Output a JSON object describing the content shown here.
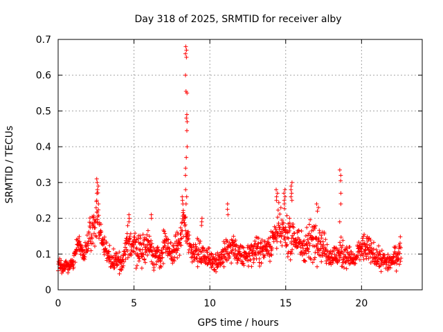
{
  "chart_data": {
    "type": "scatter",
    "title": "Day 318 of 2025, SRMTID for receiver alby",
    "xlabel": "GPS time / hours",
    "ylabel": "SRMTID / TECUs",
    "xlim": [
      0,
      24
    ],
    "ylim": [
      0,
      0.7
    ],
    "xticks": [
      0,
      5,
      10,
      15,
      20
    ],
    "xtick_labels": [
      "0",
      "5",
      "10",
      "15",
      "20"
    ],
    "yticks": [
      0,
      0.1,
      0.2,
      0.3,
      0.4,
      0.5,
      0.6,
      0.7
    ],
    "ytick_labels": [
      "0",
      "0.1",
      "0.2",
      "0.3",
      "0.4",
      "0.5",
      "0.6",
      "0.7"
    ],
    "grid": true,
    "marker": "+",
    "series": [
      {
        "name": "SRMTID",
        "color": "#ff0000",
        "data_range_hours": [
          0,
          22.6
        ],
        "profile": [
          [
            0.0,
            0.07,
            0.012
          ],
          [
            0.5,
            0.065,
            0.012
          ],
          [
            1.0,
            0.075,
            0.014
          ],
          [
            1.3,
            0.14,
            0.02
          ],
          [
            1.7,
            0.09,
            0.015
          ],
          [
            2.1,
            0.15,
            0.04
          ],
          [
            2.3,
            0.17,
            0.04
          ],
          [
            2.6,
            0.22,
            0.05
          ],
          [
            2.9,
            0.14,
            0.03
          ],
          [
            3.3,
            0.09,
            0.02
          ],
          [
            3.8,
            0.085,
            0.02
          ],
          [
            4.2,
            0.075,
            0.015
          ],
          [
            4.6,
            0.13,
            0.03
          ],
          [
            5.0,
            0.13,
            0.04
          ],
          [
            5.5,
            0.11,
            0.03
          ],
          [
            6.0,
            0.13,
            0.03
          ],
          [
            6.3,
            0.1,
            0.03
          ],
          [
            6.7,
            0.08,
            0.025
          ],
          [
            7.0,
            0.13,
            0.03
          ],
          [
            7.5,
            0.1,
            0.02
          ],
          [
            8.0,
            0.13,
            0.03
          ],
          [
            8.3,
            0.2,
            0.04
          ],
          [
            8.5,
            0.15,
            0.03
          ],
          [
            8.8,
            0.11,
            0.02
          ],
          [
            9.3,
            0.1,
            0.025
          ],
          [
            9.8,
            0.09,
            0.02
          ],
          [
            10.5,
            0.08,
            0.02
          ],
          [
            11.0,
            0.1,
            0.025
          ],
          [
            11.5,
            0.12,
            0.03
          ],
          [
            12.0,
            0.09,
            0.02
          ],
          [
            12.5,
            0.1,
            0.02
          ],
          [
            13.0,
            0.11,
            0.025
          ],
          [
            13.5,
            0.11,
            0.025
          ],
          [
            14.0,
            0.13,
            0.03
          ],
          [
            14.5,
            0.17,
            0.04
          ],
          [
            15.0,
            0.15,
            0.04
          ],
          [
            15.5,
            0.15,
            0.04
          ],
          [
            16.0,
            0.12,
            0.03
          ],
          [
            16.5,
            0.13,
            0.04
          ],
          [
            17.0,
            0.15,
            0.04
          ],
          [
            17.5,
            0.12,
            0.03
          ],
          [
            18.0,
            0.09,
            0.02
          ],
          [
            18.5,
            0.1,
            0.03
          ],
          [
            19.0,
            0.1,
            0.025
          ],
          [
            19.5,
            0.08,
            0.015
          ],
          [
            20.0,
            0.12,
            0.03
          ],
          [
            20.5,
            0.11,
            0.025
          ],
          [
            21.0,
            0.09,
            0.02
          ],
          [
            21.5,
            0.08,
            0.02
          ],
          [
            22.0,
            0.08,
            0.02
          ],
          [
            22.6,
            0.11,
            0.025
          ]
        ],
        "spikes": [
          {
            "x": 2.6,
            "values": [
              0.31,
              0.3,
              0.29,
              0.28,
              0.27,
              0.25,
              0.24
            ]
          },
          {
            "x": 4.7,
            "values": [
              0.21,
              0.2,
              0.19
            ]
          },
          {
            "x": 6.1,
            "values": [
              0.21,
              0.2
            ]
          },
          {
            "x": 8.2,
            "values": [
              0.26,
              0.25,
              0.24
            ]
          },
          {
            "x": 8.45,
            "values": [
              0.68,
              0.67,
              0.66,
              0.65,
              0.6,
              0.555,
              0.55,
              0.49,
              0.48,
              0.47,
              0.445,
              0.4,
              0.37,
              0.34,
              0.32,
              0.28,
              0.26,
              0.24
            ]
          },
          {
            "x": 9.5,
            "values": [
              0.2,
              0.19,
              0.18
            ]
          },
          {
            "x": 11.2,
            "values": [
              0.24,
              0.225,
              0.21
            ]
          },
          {
            "x": 14.4,
            "values": [
              0.28,
              0.27,
              0.26,
              0.25
            ]
          },
          {
            "x": 14.9,
            "values": [
              0.28,
              0.27,
              0.26,
              0.25,
              0.24
            ]
          },
          {
            "x": 15.4,
            "values": [
              0.3,
              0.29,
              0.28,
              0.27,
              0.26,
              0.25
            ]
          },
          {
            "x": 17.1,
            "values": [
              0.24,
              0.23,
              0.22
            ]
          },
          {
            "x": 18.6,
            "values": [
              0.335,
              0.32,
              0.305,
              0.27,
              0.24,
              0.19
            ]
          }
        ]
      }
    ]
  }
}
